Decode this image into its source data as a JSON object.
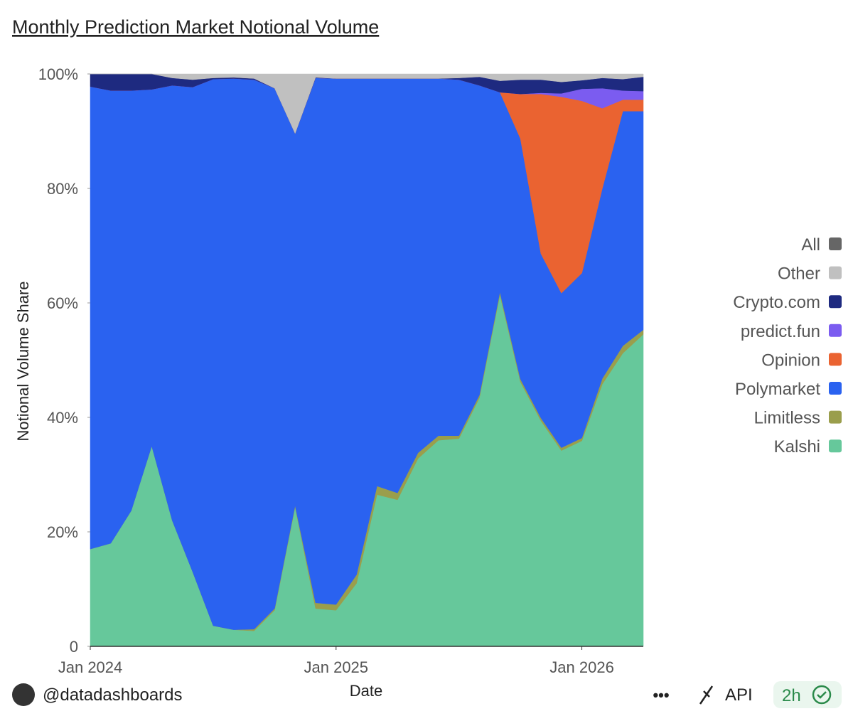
{
  "chart_data": {
    "type": "stacked_area",
    "title": "Monthly Prediction Market Notional Volume",
    "x_label": "Date",
    "y_label": "Notional Volume Share",
    "x": [
      "2024-01",
      "2024-02",
      "2024-03",
      "2024-04",
      "2024-05",
      "2024-06",
      "2024-07",
      "2024-08",
      "2024-09",
      "2024-10",
      "2024-11",
      "2024-12",
      "2025-01",
      "2025-02",
      "2025-03",
      "2025-04",
      "2025-05",
      "2025-06",
      "2025-07",
      "2025-08",
      "2025-09",
      "2025-10",
      "2025-11",
      "2025-12",
      "2026-01",
      "2026-02",
      "2026-03",
      "2026-04"
    ],
    "xticks": [
      {
        "value": "2024-01",
        "label": "Jan 2024"
      },
      {
        "value": "2025-01",
        "label": "Jan 2025"
      },
      {
        "value": "2026-01",
        "label": "Jan 2026"
      }
    ],
    "ylim": [
      0,
      100
    ],
    "yticks": [
      0,
      {
        "value": 20,
        "label": "20%"
      },
      {
        "value": 40,
        "label": "40%"
      },
      {
        "value": 60,
        "label": "60%"
      },
      {
        "value": 80,
        "label": "80%"
      },
      {
        "value": 100,
        "label": "100%"
      }
    ],
    "legend": "right",
    "series": [
      {
        "name": "Kalshi",
        "color": "#66c89b",
        "values": [
          17,
          18,
          23.7,
          35,
          22,
          13,
          3.6,
          2.9,
          2.7,
          6.3,
          24.3,
          6.6,
          6.3,
          11,
          26.5,
          25.6,
          32.8,
          36,
          36.3,
          43.4,
          61.4,
          46.2,
          39.4,
          34.2,
          35.9,
          45.8,
          51.2,
          54.5
        ]
      },
      {
        "name": "Limitless",
        "color": "#9a9e4c",
        "values": [
          0,
          0,
          0,
          0,
          0,
          0,
          0,
          0,
          0.3,
          0.3,
          0.3,
          1,
          1,
          1.5,
          1.5,
          1.2,
          1,
          0.8,
          0.5,
          0.5,
          0.5,
          0.5,
          0.5,
          0.5,
          0.5,
          1,
          1.3,
          0.8
        ]
      },
      {
        "name": "Polymarket",
        "color": "#2a62f0",
        "values": [
          80.8,
          79.1,
          73.4,
          62.3,
          76,
          84.7,
          95.5,
          96.3,
          96,
          90.9,
          65,
          91.7,
          91.9,
          86.7,
          71.2,
          72.4,
          65.4,
          62.4,
          62.2,
          54.1,
          34.9,
          42,
          28.7,
          27,
          28.8,
          33.2,
          41,
          38.2
        ]
      },
      {
        "name": "Opinion",
        "color": "#ea6331",
        "values": [
          0,
          0,
          0,
          0,
          0,
          0,
          0,
          0,
          0,
          0,
          0,
          0,
          0,
          0,
          0,
          0,
          0,
          0,
          0,
          0,
          0,
          7.8,
          27.9,
          34.3,
          30.1,
          14,
          2,
          2
        ]
      },
      {
        "name": "predict.fun",
        "color": "#7b5cf0",
        "values": [
          0,
          0,
          0,
          0,
          0,
          0,
          0,
          0,
          0,
          0,
          0,
          0,
          0,
          0,
          0,
          0,
          0,
          0,
          0,
          0,
          0,
          0,
          0.2,
          0.6,
          2.1,
          3.5,
          1.6,
          1.5
        ]
      },
      {
        "name": "Crypto.com",
        "color": "#1e2a80",
        "values": [
          2.2,
          2.9,
          2.9,
          2.7,
          1.3,
          1.3,
          0.2,
          0.2,
          0.2,
          0,
          0,
          0.1,
          0,
          0,
          0,
          0,
          0,
          0,
          0.3,
          1.5,
          2,
          2.5,
          2.3,
          2,
          1.5,
          1.8,
          2,
          2.5
        ]
      },
      {
        "name": "Other",
        "color": "#c0c0c0",
        "values": [
          0,
          0,
          0,
          0,
          0.7,
          1,
          0.7,
          0.6,
          0.8,
          2.5,
          10.4,
          0.6,
          0.8,
          0.8,
          0.8,
          0.8,
          0.8,
          0.8,
          0.7,
          0.5,
          1.2,
          1,
          1,
          1.4,
          1.1,
          0.7,
          0.9,
          0.5
        ]
      },
      {
        "name": "All",
        "color": "#666666",
        "values": [
          null,
          null,
          null,
          null,
          null,
          null,
          null,
          null,
          null,
          null,
          null,
          null,
          null,
          null,
          null,
          null,
          null,
          null,
          null,
          null,
          null,
          null,
          null,
          null,
          null,
          null,
          null,
          null
        ]
      }
    ]
  },
  "footer": {
    "author": "@datadashboards",
    "menu": "•••",
    "api": "API",
    "age": "2h"
  }
}
